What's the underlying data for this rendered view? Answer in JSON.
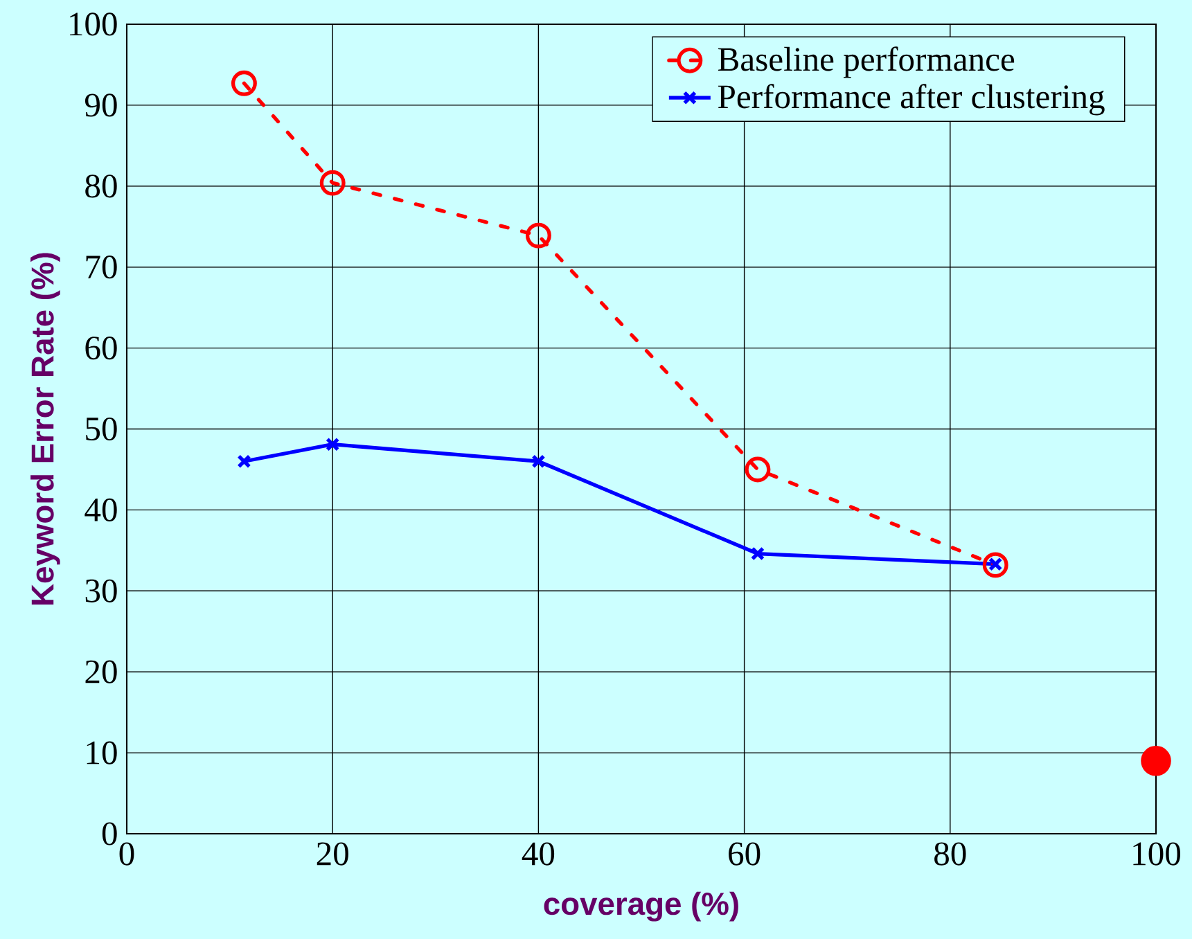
{
  "chart_data": {
    "type": "line",
    "xlabel": "coverage (%)",
    "ylabel": "Keyword Error Rate (%)",
    "xlim": [
      0,
      100
    ],
    "ylim": [
      0,
      100
    ],
    "xticks": [
      0,
      20,
      40,
      60,
      80,
      100
    ],
    "yticks": [
      0,
      10,
      20,
      30,
      40,
      50,
      60,
      70,
      80,
      90,
      100
    ],
    "grid": true,
    "legend": "top right",
    "series": [
      {
        "name": "Baseline performance",
        "color": "#ff0000",
        "marker": "circle",
        "line_style": "dashdot",
        "x": [
          11.4,
          20,
          40,
          61.3,
          84.4
        ],
        "values": [
          92.7,
          80.4,
          73.9,
          45.0,
          33.2
        ]
      },
      {
        "name": "Performance after clustering",
        "color": "#0000ff",
        "marker": "cross",
        "line_style": "solid",
        "x": [
          11.4,
          20,
          40,
          61.3,
          84.4
        ],
        "values": [
          46.0,
          48.1,
          46.0,
          34.6,
          33.3
        ]
      },
      {
        "type": "scatter",
        "color": "#ff0000",
        "marker": "circle",
        "x": [
          100
        ],
        "values": [
          9.0
        ]
      }
    ]
  }
}
